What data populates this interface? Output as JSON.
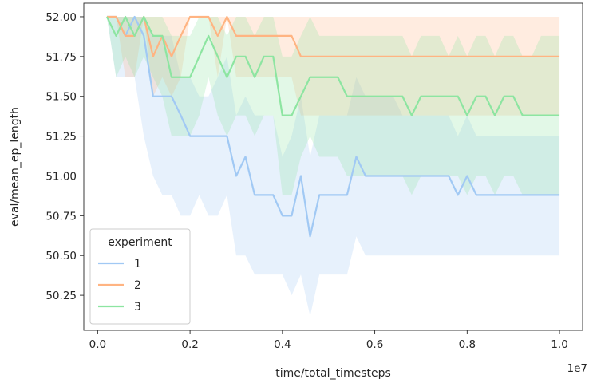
{
  "chart_data": {
    "type": "line",
    "title": "",
    "xlabel": "time/total_timesteps",
    "ylabel": "eval/mean_ep_length",
    "x_offset_label": "1e7",
    "xlim": [
      -0.03,
      1.05
    ],
    "ylim": [
      50.03,
      52.085
    ],
    "xticks": [
      0.0,
      0.2,
      0.4,
      0.6,
      0.8,
      1.0
    ],
    "xtick_labels": [
      "0.0",
      "0.2",
      "0.4",
      "0.6",
      "0.8",
      "1.0"
    ],
    "yticks": [
      50.25,
      50.5,
      50.75,
      51.0,
      51.25,
      51.5,
      51.75,
      52.0
    ],
    "ytick_labels": [
      "50.25",
      "50.50",
      "50.75",
      "51.00",
      "51.25",
      "51.50",
      "51.75",
      "52.00"
    ],
    "grid": false,
    "legend": {
      "title": "experiment",
      "placement": "lower-left"
    },
    "x": [
      0.02,
      0.04,
      0.06,
      0.08,
      0.1,
      0.12,
      0.14,
      0.16,
      0.18,
      0.2,
      0.22,
      0.24,
      0.26,
      0.28,
      0.3,
      0.32,
      0.34,
      0.36,
      0.38,
      0.4,
      0.42,
      0.44,
      0.46,
      0.48,
      0.5,
      0.52,
      0.54,
      0.56,
      0.58,
      0.6,
      0.62,
      0.64,
      0.66,
      0.68,
      0.7,
      0.72,
      0.74,
      0.76,
      0.78,
      0.8,
      0.82,
      0.84,
      0.86,
      0.88,
      0.9,
      0.92,
      0.94,
      0.96,
      0.98,
      1.0
    ],
    "series": [
      {
        "name": "1",
        "color": "#a1c9f4",
        "values": [
          52.0,
          52.0,
          51.88,
          52.0,
          51.88,
          51.5,
          51.5,
          51.5,
          51.38,
          51.25,
          51.25,
          51.25,
          51.25,
          51.25,
          51.0,
          51.12,
          50.88,
          50.88,
          50.88,
          50.75,
          50.75,
          51.0,
          50.62,
          50.88,
          50.88,
          50.88,
          50.88,
          51.12,
          51.0,
          51.0,
          51.0,
          51.0,
          51.0,
          51.0,
          51.0,
          51.0,
          51.0,
          51.0,
          50.88,
          51.0,
          50.88,
          50.88,
          50.88,
          50.88,
          50.88,
          50.88,
          50.88,
          50.88,
          50.88,
          50.88
        ],
        "lower": [
          52.0,
          51.62,
          51.62,
          51.62,
          51.25,
          51.0,
          50.88,
          50.88,
          50.75,
          50.75,
          50.88,
          50.75,
          50.75,
          50.88,
          50.5,
          50.5,
          50.38,
          50.38,
          50.38,
          50.38,
          50.25,
          50.38,
          50.12,
          50.38,
          50.38,
          50.38,
          50.38,
          50.62,
          50.5,
          50.5,
          50.5,
          50.5,
          50.5,
          50.5,
          50.5,
          50.5,
          50.5,
          50.5,
          50.5,
          50.5,
          50.5,
          50.5,
          50.5,
          50.5,
          50.5,
          50.5,
          50.5,
          50.5,
          50.5,
          50.5
        ],
        "upper": [
          52.0,
          52.0,
          52.0,
          52.0,
          52.0,
          51.88,
          51.88,
          51.88,
          51.62,
          51.62,
          51.5,
          51.5,
          51.62,
          51.75,
          51.38,
          51.5,
          51.38,
          51.38,
          51.38,
          51.12,
          51.25,
          51.5,
          51.12,
          51.38,
          51.38,
          51.38,
          51.38,
          51.62,
          51.5,
          51.5,
          51.5,
          51.5,
          51.38,
          51.38,
          51.38,
          51.38,
          51.38,
          51.38,
          51.25,
          51.38,
          51.25,
          51.25,
          51.25,
          51.25,
          51.25,
          51.25,
          51.25,
          51.25,
          51.25,
          51.25
        ]
      },
      {
        "name": "2",
        "color": "#ffb482",
        "values": [
          52.0,
          52.0,
          51.88,
          51.88,
          52.0,
          51.75,
          51.88,
          51.75,
          51.88,
          52.0,
          52.0,
          52.0,
          51.88,
          52.0,
          51.88,
          51.88,
          51.88,
          51.88,
          51.88,
          51.88,
          51.88,
          51.75,
          51.75,
          51.75,
          51.75,
          51.75,
          51.75,
          51.75,
          51.75,
          51.75,
          51.75,
          51.75,
          51.75,
          51.75,
          51.75,
          51.75,
          51.75,
          51.75,
          51.75,
          51.75,
          51.75,
          51.75,
          51.75,
          51.75,
          51.75,
          51.75,
          51.75,
          51.75,
          51.75,
          51.75
        ],
        "lower": [
          52.0,
          52.0,
          51.62,
          51.62,
          52.0,
          51.5,
          51.62,
          51.5,
          51.62,
          52.0,
          52.0,
          52.0,
          51.62,
          52.0,
          51.62,
          51.62,
          51.62,
          51.62,
          51.62,
          51.62,
          51.62,
          51.38,
          51.38,
          51.38,
          51.38,
          51.38,
          51.38,
          51.38,
          51.38,
          51.38,
          51.38,
          51.38,
          51.38,
          51.38,
          51.38,
          51.38,
          51.38,
          51.38,
          51.38,
          51.38,
          51.38,
          51.38,
          51.38,
          51.38,
          51.38,
          51.38,
          51.38,
          51.38,
          51.38,
          51.38
        ],
        "upper": [
          52.0,
          52.0,
          52.0,
          52.0,
          52.0,
          52.0,
          52.0,
          52.0,
          52.0,
          52.0,
          52.0,
          52.0,
          52.0,
          52.0,
          52.0,
          52.0,
          52.0,
          52.0,
          52.0,
          52.0,
          52.0,
          52.0,
          52.0,
          52.0,
          52.0,
          52.0,
          52.0,
          52.0,
          52.0,
          52.0,
          52.0,
          52.0,
          52.0,
          52.0,
          52.0,
          52.0,
          52.0,
          52.0,
          52.0,
          52.0,
          52.0,
          52.0,
          52.0,
          52.0,
          52.0,
          52.0,
          52.0,
          52.0,
          52.0,
          52.0
        ]
      },
      {
        "name": "3",
        "color": "#8de5a1",
        "values": [
          52.0,
          51.88,
          52.0,
          51.88,
          52.0,
          51.88,
          51.88,
          51.62,
          51.62,
          51.62,
          51.75,
          51.88,
          51.75,
          51.62,
          51.75,
          51.75,
          51.62,
          51.75,
          51.75,
          51.38,
          51.38,
          51.5,
          51.62,
          51.62,
          51.62,
          51.62,
          51.5,
          51.5,
          51.5,
          51.5,
          51.5,
          51.5,
          51.5,
          51.38,
          51.5,
          51.5,
          51.5,
          51.5,
          51.5,
          51.38,
          51.5,
          51.5,
          51.38,
          51.5,
          51.5,
          51.38,
          51.38,
          51.38,
          51.38,
          51.38
        ],
        "lower": [
          52.0,
          51.62,
          51.75,
          51.62,
          51.75,
          51.62,
          51.5,
          51.25,
          51.25,
          51.25,
          51.38,
          51.62,
          51.38,
          51.25,
          51.38,
          51.38,
          51.25,
          51.38,
          51.38,
          50.88,
          50.88,
          51.12,
          51.25,
          51.12,
          51.12,
          51.12,
          51.0,
          51.0,
          51.0,
          51.0,
          51.0,
          51.0,
          51.0,
          50.88,
          51.0,
          51.0,
          51.0,
          51.0,
          51.0,
          50.88,
          51.0,
          51.0,
          50.88,
          51.0,
          51.0,
          50.88,
          50.88,
          50.88,
          50.88,
          50.88
        ],
        "upper": [
          52.0,
          52.0,
          52.0,
          52.0,
          52.0,
          52.0,
          52.0,
          51.88,
          51.88,
          51.88,
          52.0,
          52.0,
          52.0,
          51.88,
          52.0,
          52.0,
          51.88,
          52.0,
          52.0,
          51.75,
          51.75,
          51.88,
          52.0,
          51.88,
          51.88,
          51.88,
          51.88,
          51.88,
          51.88,
          51.88,
          51.88,
          51.88,
          51.88,
          51.75,
          51.88,
          51.88,
          51.88,
          51.75,
          51.88,
          51.75,
          51.88,
          51.88,
          51.75,
          51.88,
          51.88,
          51.75,
          51.75,
          51.88,
          51.88,
          51.88
        ]
      }
    ]
  }
}
